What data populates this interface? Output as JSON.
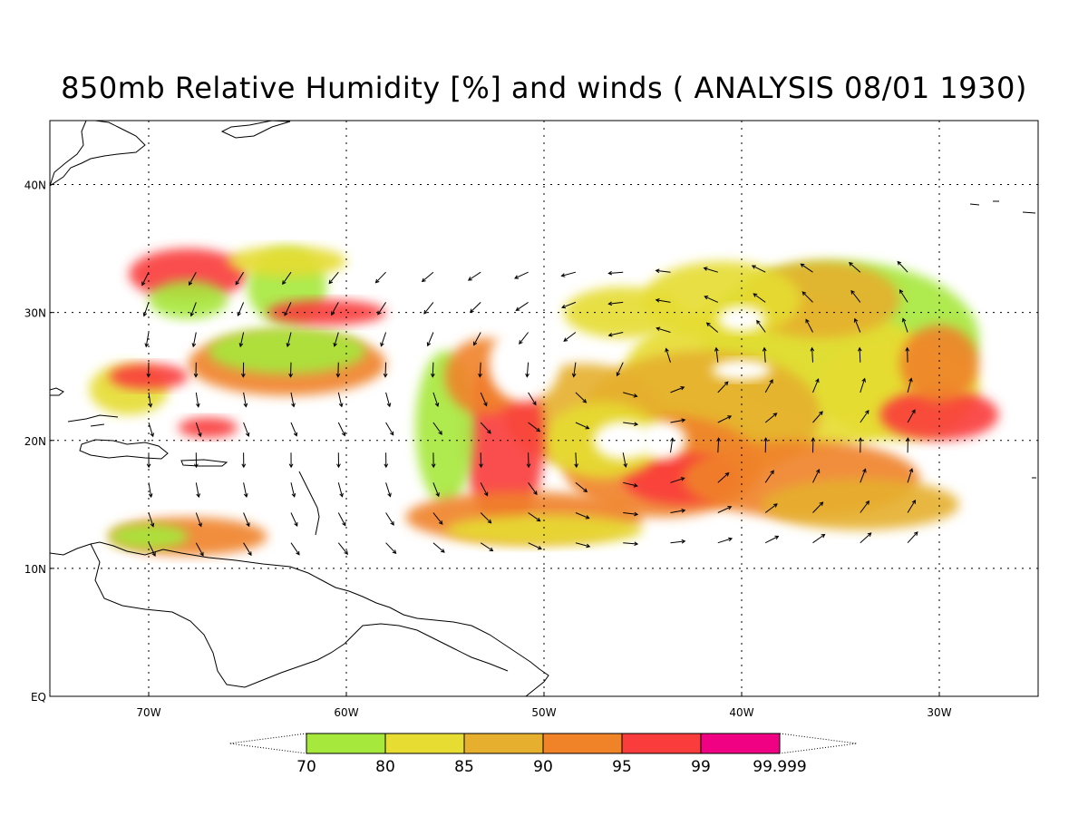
{
  "title": "850mb Relative Humidity [%] and winds ( ANALYSIS 08/01 1930)",
  "map": {
    "lon_range": [
      -75,
      -25
    ],
    "lat_range": [
      0,
      45
    ],
    "gridlines": "dotted",
    "lat_labels": [
      {
        "value": 40,
        "text": "40N"
      },
      {
        "value": 30,
        "text": "30N"
      },
      {
        "value": 20,
        "text": "20N"
      },
      {
        "value": 10,
        "text": "10N"
      },
      {
        "value": 0,
        "text": "EQ"
      }
    ],
    "lon_labels": [
      {
        "value": -70,
        "text": "70W"
      },
      {
        "value": -60,
        "text": "60W"
      },
      {
        "value": -50,
        "text": "50W"
      },
      {
        "value": -40,
        "text": "40W"
      },
      {
        "value": -30,
        "text": "30W"
      }
    ]
  },
  "colorbar": {
    "labels": [
      "70",
      "80",
      "85",
      "90",
      "95",
      "99",
      "99.999"
    ],
    "colors": [
      "#a6e83c",
      "#e6dc32",
      "#e6af2d",
      "#f08228",
      "#fa3c3c",
      "#f00082"
    ]
  }
}
